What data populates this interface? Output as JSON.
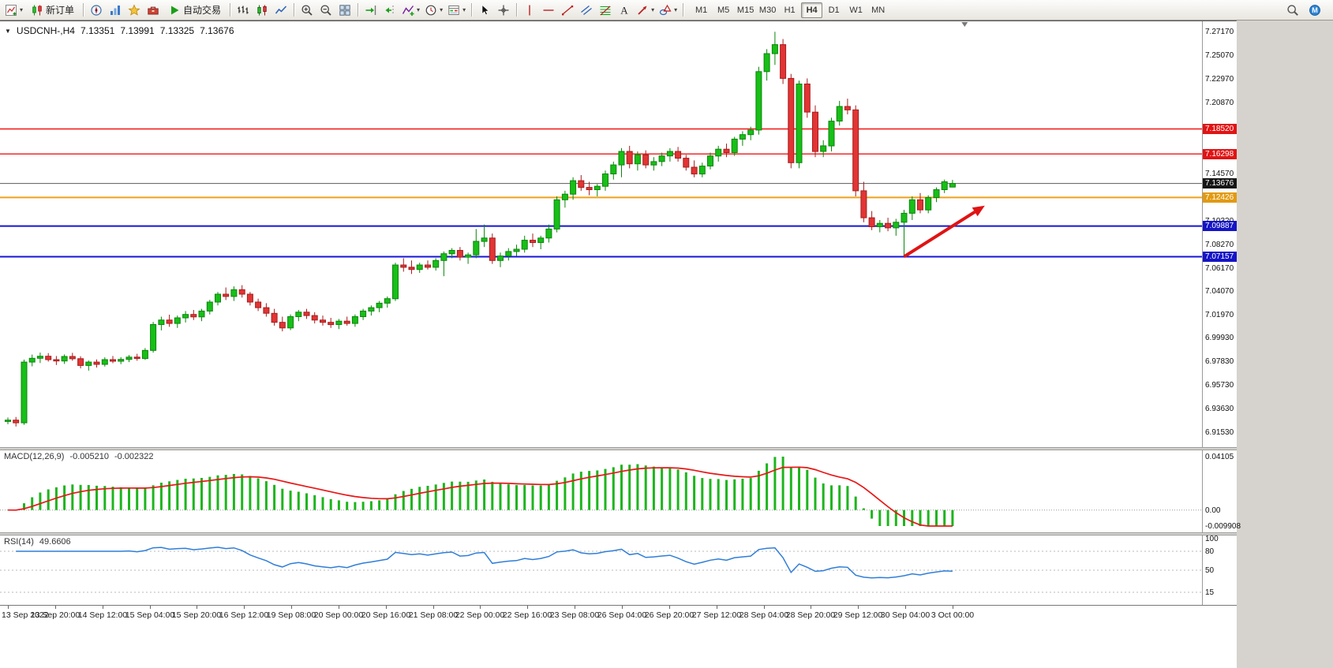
{
  "toolbar": {
    "groups": [
      {
        "items": [
          {
            "icon": "new-chart",
            "name": "new-chart-button",
            "caret": true
          },
          {
            "icon": "new-order",
            "name": "new-order-button",
            "label": "新订单"
          }
        ]
      },
      {
        "items": [
          {
            "icon": "compass",
            "name": "mql5-services-button"
          },
          {
            "icon": "market-watch",
            "name": "market-watch-button"
          },
          {
            "icon": "navigator",
            "name": "navigator-button"
          },
          {
            "icon": "terminal",
            "name": "terminal-button"
          },
          {
            "icon": "play",
            "name": "autotrading-button",
            "label": "自动交易"
          }
        ]
      },
      {
        "items": [
          {
            "icon": "bar-chart",
            "name": "bar-chart-button"
          },
          {
            "icon": "candle-chart",
            "name": "candlestick-chart-button"
          },
          {
            "icon": "line-chart",
            "name": "line-chart-button"
          }
        ]
      },
      {
        "items": [
          {
            "icon": "zoom-in",
            "name": "zoom-in-button"
          },
          {
            "icon": "zoom-out",
            "name": "zoom-out-button"
          },
          {
            "icon": "tile-windows",
            "name": "tile-windows-button"
          }
        ]
      },
      {
        "items": [
          {
            "icon": "auto-scroll",
            "name": "auto-scroll-button"
          },
          {
            "icon": "chart-shift",
            "name": "chart-shift-button"
          },
          {
            "icon": "indicators",
            "name": "indicators-button",
            "caret": true
          },
          {
            "icon": "periods",
            "name": "periods-button",
            "caret": true
          },
          {
            "icon": "templates",
            "name": "templates-button",
            "caret": true
          }
        ]
      },
      {
        "items": [
          {
            "icon": "cursor",
            "name": "cursor-button"
          },
          {
            "icon": "crosshair",
            "name": "crosshair-button"
          }
        ]
      },
      {
        "items": [
          {
            "icon": "vline",
            "name": "vertical-line-button"
          },
          {
            "icon": "hline",
            "name": "horizontal-line-button"
          },
          {
            "icon": "trendline",
            "name": "trendline-button"
          },
          {
            "icon": "channel",
            "name": "equidistant-channel-button"
          },
          {
            "icon": "fibonacci",
            "name": "fibonacci-button"
          },
          {
            "icon": "text",
            "name": "text-button"
          },
          {
            "icon": "arrows",
            "name": "arrows-button",
            "caret": true
          },
          {
            "icon": "shapes",
            "name": "shapes-button",
            "caret": true
          }
        ]
      }
    ],
    "timeframes": [
      "M1",
      "M5",
      "M15",
      "M30",
      "H1",
      "H4",
      "D1",
      "W1",
      "MN"
    ],
    "active_timeframe": "H4",
    "right_items": [
      {
        "icon": "search",
        "name": "search-button"
      },
      {
        "icon": "community",
        "name": "mql5-community-button"
      }
    ]
  },
  "chart_header": {
    "symbol_period": "USDCNH-,H4",
    "open": "7.13351",
    "high": "7.13991",
    "low": "7.13325",
    "close": "7.13676"
  },
  "chart": {
    "price_axis": {
      "top_price": 7.281,
      "bottom_price": 6.9021,
      "labels": [
        "7.27170",
        "7.25070",
        "7.22970",
        "7.20870",
        "7.14570",
        "7.10320",
        "7.08270",
        "7.06170",
        "7.04070",
        "7.01970",
        "6.99930",
        "6.97830",
        "6.95730",
        "6.93630",
        "6.91530"
      ]
    },
    "hlines": [
      {
        "label": "7.18520",
        "price": 7.1852,
        "line": "#f21515",
        "badge": "#e11414",
        "width": 1.4
      },
      {
        "label": "7.16298",
        "price": 7.16298,
        "line": "#f21515",
        "badge": "#e11414",
        "width": 1.4
      },
      {
        "label": "7.12426",
        "price": 7.12426,
        "line": "#efa21b",
        "badge": "#e29a12",
        "width": 2
      },
      {
        "label": "7.09887",
        "price": 7.09887,
        "line": "#1515d8",
        "badge": "#1414c6",
        "width": 2
      },
      {
        "label": "7.07157",
        "price": 7.07157,
        "line": "#1515d8",
        "badge": "#1414c6",
        "width": 2
      }
    ],
    "current_price": {
      "label": "7.13676",
      "price": 7.13676,
      "line": "#5a5a5a",
      "badge": "#161616"
    },
    "candles": {
      "up_color": "#17bf17",
      "down_color": "#e23434",
      "up_edge": "#0b860b",
      "down_edge": "#a51d1d",
      "data": [
        [
          6.925,
          6.9285,
          6.9225,
          6.9262
        ],
        [
          6.9262,
          6.929,
          6.9205,
          6.9238
        ],
        [
          6.9238,
          6.98,
          6.922,
          6.9778
        ],
        [
          6.9778,
          6.9845,
          6.974,
          6.9812
        ],
        [
          6.9812,
          6.9862,
          6.977,
          6.983
        ],
        [
          6.983,
          6.9858,
          6.9782,
          6.98
        ],
        [
          6.98,
          6.9832,
          6.9752,
          6.9788
        ],
        [
          6.9788,
          6.9846,
          6.9762,
          6.9828
        ],
        [
          6.9828,
          6.986,
          6.979,
          6.9808
        ],
        [
          6.9808,
          6.983,
          6.9722,
          6.9748
        ],
        [
          6.9748,
          6.9792,
          6.9702,
          6.9778
        ],
        [
          6.9778,
          6.9802,
          6.973,
          6.9758
        ],
        [
          6.9758,
          6.982,
          6.9738,
          6.98
        ],
        [
          6.98,
          6.9832,
          6.9768,
          6.9786
        ],
        [
          6.9786,
          6.9822,
          6.976,
          6.9802
        ],
        [
          6.9802,
          6.984,
          6.9778,
          6.9822
        ],
        [
          6.9822,
          6.9852,
          6.979,
          6.981
        ],
        [
          6.981,
          6.9902,
          6.9798,
          6.9882
        ],
        [
          6.9882,
          7.0135,
          6.9862,
          7.0112
        ],
        [
          7.0112,
          7.0182,
          7.006,
          7.0152
        ],
        [
          7.0152,
          7.02,
          7.0092,
          7.0122
        ],
        [
          7.0122,
          7.0192,
          7.0082,
          7.0172
        ],
        [
          7.0172,
          7.0232,
          7.013,
          7.0202
        ],
        [
          7.0202,
          7.0242,
          7.0152,
          7.018
        ],
        [
          7.018,
          7.0252,
          7.0142,
          7.0232
        ],
        [
          7.0232,
          7.0332,
          7.0202,
          7.0312
        ],
        [
          7.0312,
          7.0402,
          7.0282,
          7.0382
        ],
        [
          7.0382,
          7.0442,
          7.033,
          7.0362
        ],
        [
          7.0362,
          7.0452,
          7.0322,
          7.0422
        ],
        [
          7.0422,
          7.0462,
          7.0352,
          7.0382
        ],
        [
          7.0382,
          7.0402,
          7.0282,
          7.0312
        ],
        [
          7.0312,
          7.0342,
          7.0232,
          7.0262
        ],
        [
          7.0262,
          7.0302,
          7.0182,
          7.0212
        ],
        [
          7.0212,
          7.0252,
          7.0102,
          7.0132
        ],
        [
          7.0132,
          7.0182,
          7.0052,
          7.0082
        ],
        [
          7.0082,
          7.0202,
          7.0062,
          7.0182
        ],
        [
          7.0182,
          7.0242,
          7.0142,
          7.0222
        ],
        [
          7.0222,
          7.0252,
          7.0162,
          7.0192
        ],
        [
          7.0192,
          7.0222,
          7.0122,
          7.0152
        ],
        [
          7.0152,
          7.0192,
          7.0102,
          7.0132
        ],
        [
          7.0132,
          7.0172,
          7.0082,
          7.0112
        ],
        [
          7.0112,
          7.0162,
          7.0072,
          7.0142
        ],
        [
          7.0142,
          7.0182,
          7.0102,
          7.0122
        ],
        [
          7.0122,
          7.0202,
          7.0092,
          7.0182
        ],
        [
          7.0182,
          7.0252,
          7.0152,
          7.0232
        ],
        [
          7.0232,
          7.0282,
          7.0192,
          7.0262
        ],
        [
          7.0262,
          7.0322,
          7.0222,
          7.0302
        ],
        [
          7.0302,
          7.0362,
          7.0262,
          7.0342
        ],
        [
          7.0342,
          7.0662,
          7.0322,
          7.0642
        ],
        [
          7.0642,
          7.0702,
          7.0582,
          7.0622
        ],
        [
          7.0622,
          7.0682,
          7.0562,
          7.0602
        ],
        [
          7.0602,
          7.0662,
          7.0572,
          7.0642
        ],
        [
          7.0642,
          7.0682,
          7.0602,
          7.0622
        ],
        [
          7.0622,
          7.0702,
          7.0592,
          7.0682
        ],
        [
          7.0682,
          7.0762,
          7.0542,
          7.0742
        ],
        [
          7.0742,
          7.0792,
          7.0702,
          7.0772
        ],
        [
          7.0772,
          7.0802,
          7.0682,
          7.0712
        ],
        [
          7.0712,
          7.0752,
          7.0652,
          7.0732
        ],
        [
          7.0732,
          7.0962,
          7.0702,
          7.0852
        ],
        [
          7.0852,
          7.1002,
          7.0802,
          7.0882
        ],
        [
          7.0882,
          7.0922,
          7.0652,
          7.0682
        ],
        [
          7.0682,
          7.0752,
          7.0622,
          7.0722
        ],
        [
          7.0722,
          7.0792,
          7.0682,
          7.0762
        ],
        [
          7.0762,
          7.0822,
          7.0722,
          7.0782
        ],
        [
          7.0782,
          7.0902,
          7.0752,
          7.0862
        ],
        [
          7.0862,
          7.0922,
          7.0802,
          7.0842
        ],
        [
          7.0842,
          7.0902,
          7.0782,
          7.0882
        ],
        [
          7.0882,
          7.1002,
          7.0842,
          7.0962
        ],
        [
          7.0962,
          7.1252,
          7.0932,
          7.1222
        ],
        [
          7.1222,
          7.1302,
          7.1152,
          7.1272
        ],
        [
          7.1272,
          7.1422,
          7.1222,
          7.1392
        ],
        [
          7.1392,
          7.1442,
          7.1302,
          7.1332
        ],
        [
          7.1332,
          7.1382,
          7.1262,
          7.1312
        ],
        [
          7.1312,
          7.1362,
          7.1252,
          7.1342
        ],
        [
          7.1342,
          7.1482,
          7.1302,
          7.1452
        ],
        [
          7.1452,
          7.1562,
          7.1402,
          7.1532
        ],
        [
          7.1532,
          7.1682,
          7.1422,
          7.1652
        ],
        [
          7.1652,
          7.1702,
          7.1502,
          7.1542
        ],
        [
          7.1542,
          7.1652,
          7.1482,
          7.1622
        ],
        [
          7.1622,
          7.1662,
          7.1502,
          7.1532
        ],
        [
          7.1532,
          7.1602,
          7.1482,
          7.1562
        ],
        [
          7.1562,
          7.1642,
          7.1522,
          7.1612
        ],
        [
          7.1612,
          7.1682,
          7.1562,
          7.1652
        ],
        [
          7.1652,
          7.1692,
          7.1562,
          7.1592
        ],
        [
          7.1592,
          7.1622,
          7.1482,
          7.1512
        ],
        [
          7.1512,
          7.1572,
          7.1422,
          7.1452
        ],
        [
          7.1452,
          7.1552,
          7.1422,
          7.1522
        ],
        [
          7.1522,
          7.1642,
          7.1492,
          7.1612
        ],
        [
          7.1612,
          7.1702,
          7.1562,
          7.1672
        ],
        [
          7.1672,
          7.1722,
          7.1602,
          7.1642
        ],
        [
          7.1642,
          7.1782,
          7.1612,
          7.1762
        ],
        [
          7.1762,
          7.1832,
          7.1702,
          7.1802
        ],
        [
          7.1802,
          7.1872,
          7.1752,
          7.1842
        ],
        [
          7.1842,
          7.2405,
          7.1802,
          7.2362
        ],
        [
          7.2362,
          7.2562,
          7.2282,
          7.2522
        ],
        [
          7.2522,
          7.2717,
          7.2422,
          7.2602
        ],
        [
          7.2602,
          7.2652,
          7.2252,
          7.2302
        ],
        [
          7.2302,
          7.2342,
          7.1502,
          7.1552
        ],
        [
          7.1552,
          7.2282,
          7.1502,
          7.2252
        ],
        [
          7.2252,
          7.2302,
          7.1952,
          7.2002
        ],
        [
          7.2002,
          7.2062,
          7.1602,
          7.1652
        ],
        [
          7.1652,
          7.1752,
          7.1602,
          7.1702
        ],
        [
          7.1702,
          7.1952,
          7.1652,
          7.1922
        ],
        [
          7.1922,
          7.2102,
          7.1882,
          7.2052
        ],
        [
          7.2052,
          7.2122,
          7.1982,
          7.2022
        ],
        [
          7.2022,
          7.2062,
          7.1252,
          7.1302
        ],
        [
          7.1302,
          7.1382,
          7.1022,
          7.1062
        ],
        [
          7.1062,
          7.1122,
          7.0952,
          7.0982
        ],
        [
          7.0982,
          7.1042,
          7.0932,
          7.1012
        ],
        [
          7.1012,
          7.1062,
          7.0942,
          7.0972
        ],
        [
          7.0972,
          7.1052,
          7.0902,
          7.1022
        ],
        [
          7.1022,
          7.1132,
          7.0716,
          7.1102
        ],
        [
          7.1102,
          7.1252,
          7.1042,
          7.1222
        ],
        [
          7.1222,
          7.1282,
          7.1102,
          7.1132
        ],
        [
          7.1132,
          7.1262,
          7.1102,
          7.1242
        ],
        [
          7.1242,
          7.1332,
          7.1202,
          7.1312
        ],
        [
          7.1312,
          7.1402,
          7.1282,
          7.1382
        ],
        [
          7.13351,
          7.13991,
          7.13325,
          7.13676
        ]
      ]
    },
    "arrow": {
      "from_bar": 111,
      "from_price": 7.0716,
      "to_bar": 121,
      "to_price": 7.117,
      "color": "#e01313"
    },
    "shift_marker_bar": 118.5,
    "time_axis": {
      "bars_per_label": 5.85,
      "labels": [
        "13 Sep 2022",
        "13 Sep 20:00",
        "14 Sep 12:00",
        "15 Sep 04:00",
        "15 Sep 20:00",
        "16 Sep 12:00",
        "19 Sep 08:00",
        "20 Sep 00:00",
        "20 Sep 16:00",
        "21 Sep 08:00",
        "22 Sep 00:00",
        "22 Sep 16:00",
        "23 Sep 08:00",
        "26 Sep 04:00",
        "26 Sep 20:00",
        "27 Sep 12:00",
        "28 Sep 04:00",
        "28 Sep 20:00",
        "29 Sep 12:00",
        "30 Sep 04:00",
        "3 Oct 00:00"
      ]
    }
  },
  "macd": {
    "title": "MACD(12,26,9)",
    "value_main": "-0.005210",
    "value_signal": "-0.002322",
    "fast": 12,
    "slow": 26,
    "signal": 9,
    "hist_color": "#1db51d",
    "signal_color": "#e81717",
    "axis": {
      "top": "0.04105",
      "zero": "0.00",
      "bottom": "-0.009908"
    }
  },
  "rsi": {
    "title": "RSI(14)",
    "value": "49.6606",
    "period": 14,
    "line_color": "#2f7ed8",
    "levels": [
      80,
      50,
      15
    ],
    "axis_labels": [
      {
        "text": "100",
        "value": 100
      },
      {
        "text": "80",
        "value": 80
      },
      {
        "text": "50",
        "value": 50
      },
      {
        "text": "15",
        "value": 15
      }
    ]
  }
}
